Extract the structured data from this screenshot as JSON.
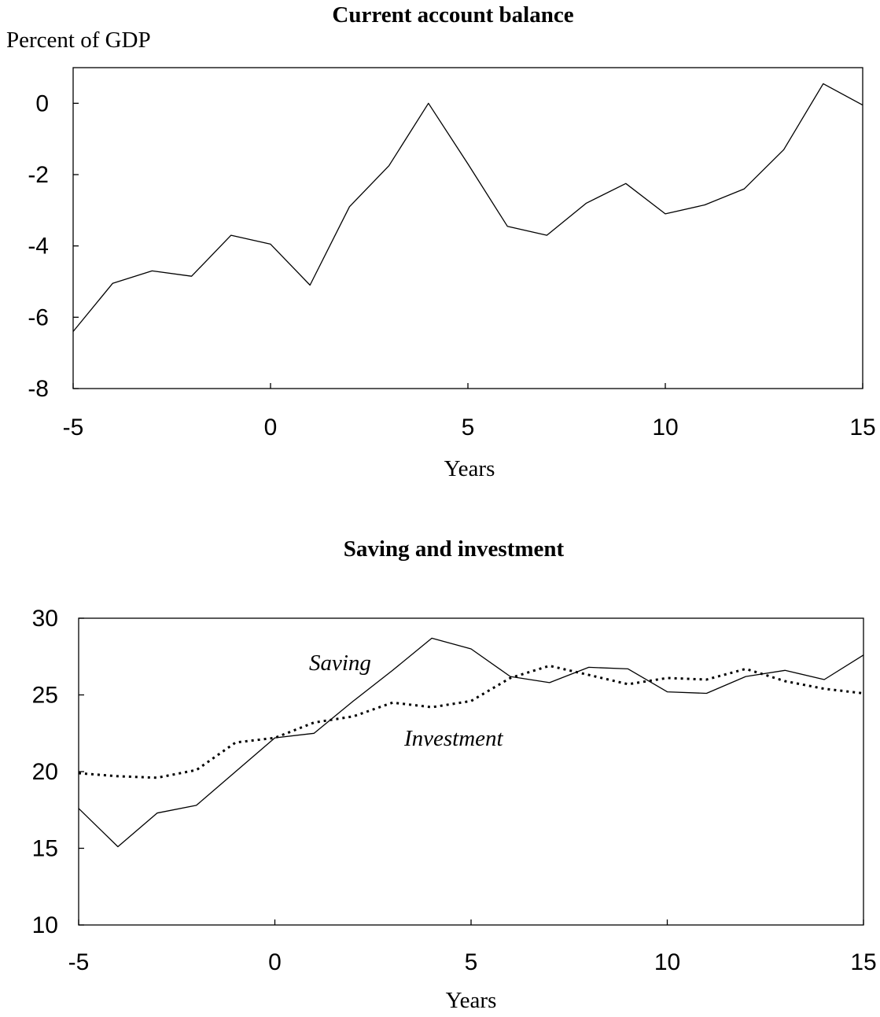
{
  "chart_data": [
    {
      "type": "line",
      "title": "Current account balance",
      "ylabel": "Percent of GDP",
      "xlabel": "Years",
      "xlim": [
        -5,
        15
      ],
      "ylim": [
        -8,
        1
      ],
      "x_ticks": [
        -5,
        0,
        5,
        10,
        15
      ],
      "y_ticks": [
        -8,
        -6,
        -4,
        -2,
        0
      ],
      "grid": false,
      "x": [
        -5,
        -4,
        -3,
        -2,
        -1,
        0,
        1,
        2,
        3,
        4,
        5,
        6,
        7,
        8,
        9,
        10,
        11,
        12,
        13,
        14,
        15
      ],
      "series": [
        {
          "style": "solid",
          "values": [
            -6.4,
            -5.05,
            -4.7,
            -4.85,
            -3.7,
            -3.95,
            -5.1,
            -2.9,
            -1.75,
            0.0,
            -1.7,
            -3.45,
            -3.7,
            -2.8,
            -2.25,
            -3.1,
            -2.85,
            -2.4,
            -1.3,
            0.55,
            -0.05
          ]
        }
      ]
    },
    {
      "type": "line",
      "title": "Saving and investment",
      "xlabel": "Years",
      "xlim": [
        -5,
        15
      ],
      "ylim": [
        10,
        30
      ],
      "x_ticks": [
        -5,
        0,
        5,
        10,
        15
      ],
      "y_ticks": [
        10,
        15,
        20,
        25,
        30
      ],
      "grid": false,
      "x": [
        -5,
        -4,
        -3,
        -2,
        -1,
        0,
        1,
        2,
        3,
        4,
        5,
        6,
        7,
        8,
        9,
        10,
        11,
        12,
        13,
        14,
        15
      ],
      "series": [
        {
          "name": "Saving",
          "style": "solid",
          "values": [
            17.6,
            15.1,
            17.3,
            17.8,
            20.0,
            22.2,
            22.5,
            24.6,
            26.6,
            28.7,
            28.0,
            26.2,
            25.8,
            26.8,
            26.7,
            25.2,
            25.1,
            26.2,
            26.6,
            26.0,
            27.6
          ]
        },
        {
          "name": "Investment",
          "style": "dotted",
          "values": [
            19.9,
            19.7,
            19.6,
            20.1,
            21.9,
            22.2,
            23.2,
            23.6,
            24.5,
            24.2,
            24.6,
            26.1,
            26.9,
            26.3,
            25.7,
            26.1,
            26.0,
            26.7,
            25.9,
            25.4,
            25.1
          ]
        }
      ],
      "annotations": [
        "Saving",
        "Investment"
      ]
    }
  ]
}
